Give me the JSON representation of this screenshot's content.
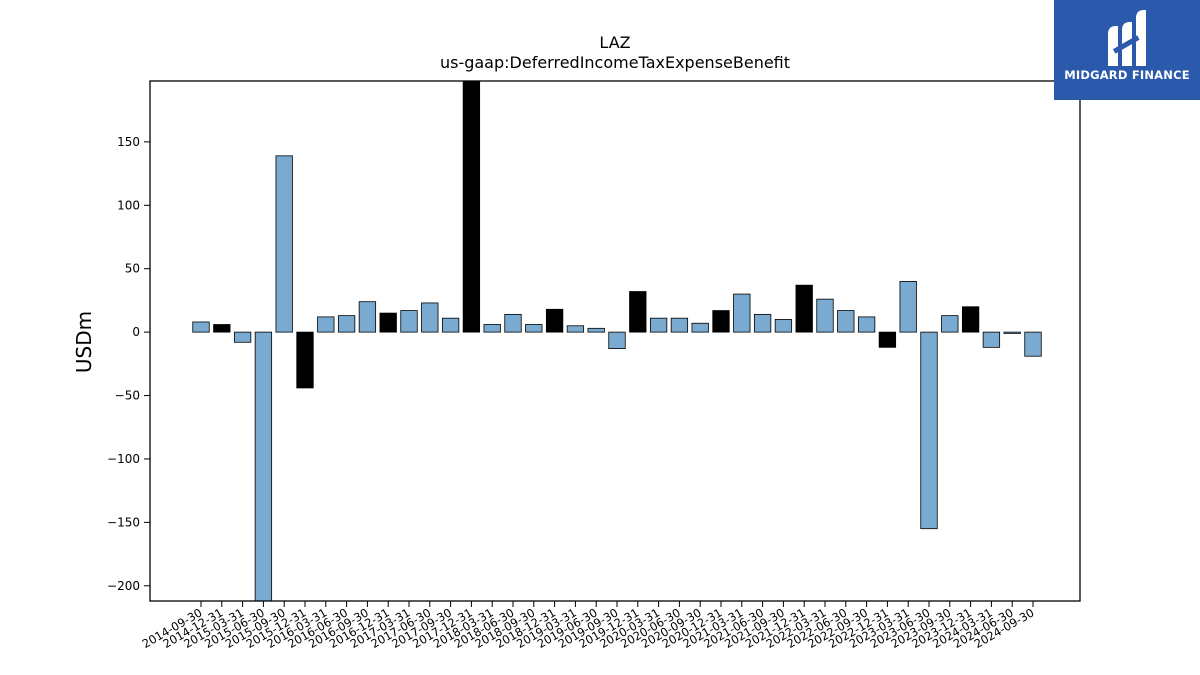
{
  "logo": {
    "text": "MIDGARD FINANCE",
    "icon": "midgard-logo-icon",
    "bg": "#2b5aad"
  },
  "colors": {
    "fy": "#000000",
    "q": "#7aaad0"
  },
  "chart_data": {
    "type": "bar",
    "title": "LAZ",
    "subtitle": "us-gaap:DeferredIncomeTaxExpenseBenefit",
    "xlabel": "",
    "ylabel": "USDm",
    "ylim": [
      -212,
      198
    ],
    "yticks": [
      -200,
      -150,
      -100,
      -50,
      0,
      50,
      100,
      150
    ],
    "grid": false,
    "categories": [
      "2014-09-30",
      "2014-12-31",
      "2015-03-31",
      "2015-06-30",
      "2015-09-30",
      "2015-12-31",
      "2016-03-31",
      "2016-06-30",
      "2016-09-30",
      "2016-12-31",
      "2017-03-31",
      "2017-06-30",
      "2017-09-30",
      "2017-12-31",
      "2018-03-31",
      "2018-06-30",
      "2018-09-30",
      "2018-12-31",
      "2019-03-31",
      "2019-06-30",
      "2019-09-30",
      "2019-12-31",
      "2020-03-31",
      "2020-06-30",
      "2020-09-30",
      "2020-12-31",
      "2021-03-31",
      "2021-06-30",
      "2021-09-30",
      "2021-12-31",
      "2022-03-31",
      "2022-06-30",
      "2022-09-30",
      "2022-12-31",
      "2023-03-31",
      "2023-06-30",
      "2023-09-30",
      "2023-12-31",
      "2024-03-31",
      "2024-06-30",
      "2024-09-30"
    ],
    "values": [
      8,
      6,
      -8,
      -212,
      139,
      -44,
      12,
      13,
      24,
      15,
      17,
      23,
      11,
      198,
      6,
      14,
      6,
      18,
      5,
      3,
      -13,
      32,
      11,
      11,
      7,
      17,
      30,
      14,
      10,
      37,
      26,
      17,
      12,
      -12,
      40,
      -155,
      13,
      20,
      -12,
      -1,
      -19
    ],
    "period_type": [
      "Q",
      "FY",
      "Q",
      "Q",
      "Q",
      "FY",
      "Q",
      "Q",
      "Q",
      "FY",
      "Q",
      "Q",
      "Q",
      "FY",
      "Q",
      "Q",
      "Q",
      "FY",
      "Q",
      "Q",
      "Q",
      "FY",
      "Q",
      "Q",
      "Q",
      "FY",
      "Q",
      "Q",
      "Q",
      "FY",
      "Q",
      "Q",
      "Q",
      "FY",
      "Q",
      "Q",
      "Q",
      "FY",
      "Q",
      "Q",
      "Q"
    ]
  }
}
